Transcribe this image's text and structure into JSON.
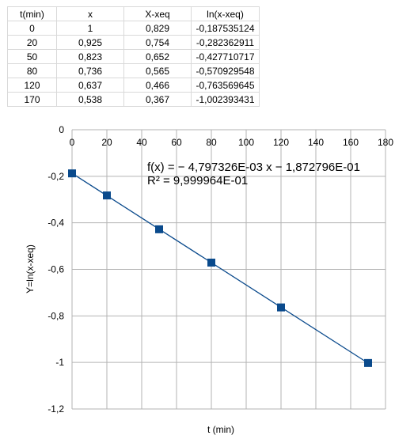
{
  "table": {
    "headers": [
      "t(min)",
      "x",
      "X-xeq",
      "ln(x-xeq)"
    ],
    "rows": [
      [
        "0",
        "1",
        "0,829",
        "-0,187535124"
      ],
      [
        "20",
        "0,925",
        "0,754",
        "-0,282362911"
      ],
      [
        "50",
        "0,823",
        "0,652",
        "-0,427710717"
      ],
      [
        "80",
        "0,736",
        "0,565",
        "-0,570929548"
      ],
      [
        "120",
        "0,637",
        "0,466",
        "-0,763569645"
      ],
      [
        "170",
        "0,538",
        "0,367",
        "-1,002393431"
      ]
    ]
  },
  "chart_data": {
    "type": "scatter",
    "xlabel": "t (min)",
    "ylabel": "Y=ln(x-xeq)",
    "xlim": [
      0,
      180
    ],
    "ylim": [
      -1.2,
      0
    ],
    "x_ticks": [
      "0",
      "20",
      "40",
      "60",
      "80",
      "100",
      "120",
      "140",
      "160",
      "180"
    ],
    "y_ticks": [
      "0",
      "-0,2",
      "-0,4",
      "-0,6",
      "-0,8",
      "-1",
      "-1,2"
    ],
    "x": [
      0,
      20,
      50,
      80,
      120,
      170
    ],
    "y": [
      -0.187535124,
      -0.282362911,
      -0.427710717,
      -0.570929548,
      -0.763569645,
      -1.002393431
    ],
    "trendline": {
      "type": "linear",
      "slope": -0.004797326,
      "intercept": -0.1872796,
      "equation": "f(x) = − 4,797326E-03 x − 1,872796E-01",
      "r2": "R² = 9,999964E-01"
    },
    "grid": true,
    "marker_color": "#0a4a8c",
    "line_color": "#0a4a8c"
  }
}
